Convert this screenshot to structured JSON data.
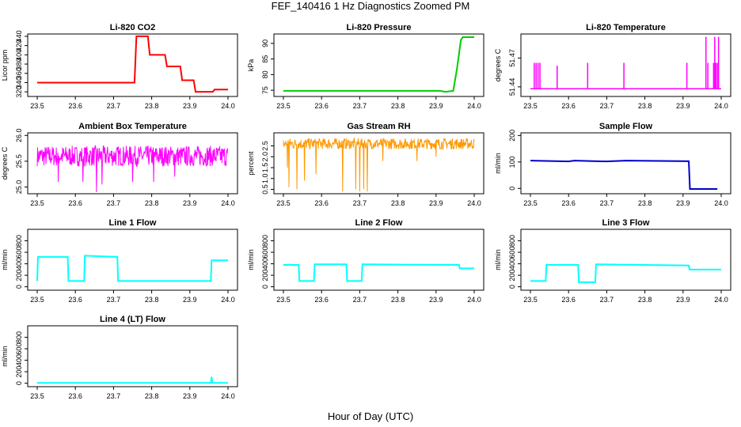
{
  "figure": {
    "title": "FEF_140416  1 Hz Diagnostics Zoomed PM",
    "xlabel": "Hour of Day (UTC)"
  },
  "colors": {
    "axis": "#000000"
  },
  "chart_data": [
    {
      "id": "co2",
      "type": "line",
      "title": "Li-820 CO2",
      "ylabel": "Licor ppm",
      "color": "#ff0000",
      "xlim": [
        23.5,
        24.0
      ],
      "ylim": [
        310,
        445
      ],
      "xticks": [
        23.5,
        23.6,
        23.7,
        23.8,
        23.9,
        24.0
      ],
      "yticks": [
        320,
        340,
        360,
        380,
        400,
        420,
        440
      ],
      "x": [
        23.5,
        23.755,
        23.76,
        23.79,
        23.795,
        23.835,
        23.84,
        23.875,
        23.88,
        23.91,
        23.915,
        23.96,
        23.965,
        24.0
      ],
      "y": [
        340,
        340,
        440,
        440,
        400,
        400,
        375,
        375,
        345,
        345,
        320,
        320,
        325,
        325
      ]
    },
    {
      "id": "pressure",
      "type": "line",
      "title": "Li-820 Pressure",
      "ylabel": "kPa",
      "color": "#00cc00",
      "xlim": [
        23.5,
        24.0
      ],
      "ylim": [
        73,
        93
      ],
      "xticks": [
        23.5,
        23.6,
        23.7,
        23.8,
        23.9,
        24.0
      ],
      "yticks": [
        75,
        80,
        85,
        90
      ],
      "x": [
        23.5,
        23.91,
        23.925,
        23.945,
        23.955,
        23.965,
        23.97,
        24.0
      ],
      "y": [
        74.8,
        74.8,
        74.5,
        74.8,
        82,
        91,
        92,
        92
      ]
    },
    {
      "id": "temp",
      "type": "spikes",
      "title": "Li-820 Temperature",
      "ylabel": "degrees C",
      "color": "#ff00ff",
      "xlim": [
        23.5,
        24.0
      ],
      "ylim": [
        51.43,
        51.495
      ],
      "xticks": [
        23.5,
        23.6,
        23.7,
        23.8,
        23.9,
        24.0
      ],
      "yticks": [
        51.44,
        51.47
      ],
      "base": 51.438,
      "spikes_x": [
        23.51,
        23.515,
        23.52,
        23.525,
        23.57,
        23.65,
        23.745,
        23.91,
        23.96,
        23.965,
        23.98,
        23.983,
        23.986,
        23.99,
        23.993
      ],
      "spikes_y": [
        51.465,
        51.465,
        51.465,
        51.465,
        51.462,
        51.465,
        51.465,
        51.465,
        51.492,
        51.465,
        51.465,
        51.492,
        51.465,
        51.465,
        51.492
      ]
    },
    {
      "id": "ambient",
      "type": "noise",
      "title": "Ambient Box Temperature",
      "ylabel": "degrees C",
      "color": "#ff00ff",
      "xlim": [
        23.5,
        24.0
      ],
      "ylim": [
        24.87,
        26.05
      ],
      "xticks": [
        23.5,
        23.6,
        23.7,
        23.8,
        23.9,
        24.0
      ],
      "yticks": [
        25.0,
        25.5,
        26.0
      ],
      "mean": 25.6,
      "amp": 0.2,
      "dips": [
        [
          23.555,
          25.1
        ],
        [
          23.62,
          25.1
        ],
        [
          23.655,
          24.9
        ],
        [
          23.67,
          25.05
        ],
        [
          23.75,
          25.1
        ],
        [
          23.805,
          25.1
        ],
        [
          23.86,
          25.2
        ]
      ]
    },
    {
      "id": "rh",
      "type": "noise",
      "title": "Gas Stream RH",
      "ylabel": "percent",
      "color": "#ff9900",
      "xlim": [
        23.5,
        24.0
      ],
      "ylim": [
        0.3,
        3.1
      ],
      "xticks": [
        23.5,
        23.6,
        23.7,
        23.8,
        23.9,
        24.0
      ],
      "yticks": [
        0.5,
        1.0,
        1.5,
        2.0,
        2.5
      ],
      "mean": 2.6,
      "amp": 0.25,
      "dips": [
        [
          23.51,
          1.5
        ],
        [
          23.515,
          0.6
        ],
        [
          23.535,
          0.5
        ],
        [
          23.555,
          0.9
        ],
        [
          23.585,
          1.2
        ],
        [
          23.655,
          0.4
        ],
        [
          23.69,
          0.5
        ],
        [
          23.7,
          0.4
        ],
        [
          23.71,
          0.5
        ],
        [
          23.72,
          0.4
        ],
        [
          23.76,
          1.8
        ],
        [
          23.85,
          1.8
        ],
        [
          23.9,
          2.0
        ]
      ]
    },
    {
      "id": "sample",
      "type": "line",
      "title": "Sample Flow",
      "ylabel": "ml/min",
      "color": "#0000cc",
      "xlim": [
        23.5,
        24.0
      ],
      "ylim": [
        -20,
        210
      ],
      "xticks": [
        23.5,
        23.6,
        23.7,
        23.8,
        23.9,
        24.0
      ],
      "yticks": [
        0,
        100,
        200
      ],
      "x": [
        23.5,
        23.6,
        23.615,
        23.7,
        23.75,
        23.915,
        23.918,
        23.99
      ],
      "y": [
        105,
        102,
        105,
        102,
        105,
        103,
        -2,
        -2
      ]
    },
    {
      "id": "line1",
      "type": "line",
      "title": "Line 1 Flow",
      "ylabel": "ml/min",
      "color": "#00ffff",
      "xlim": [
        23.5,
        24.0
      ],
      "ylim": [
        -60,
        1000
      ],
      "xticks": [
        23.5,
        23.6,
        23.7,
        23.8,
        23.9,
        24.0
      ],
      "yticks": [
        0,
        200,
        400,
        600,
        800
      ],
      "x": [
        23.5,
        23.502,
        23.58,
        23.582,
        23.623,
        23.625,
        23.71,
        23.712,
        23.955,
        23.957,
        24.0
      ],
      "y": [
        100,
        520,
        520,
        100,
        100,
        540,
        520,
        100,
        100,
        460,
        460
      ]
    },
    {
      "id": "line2",
      "type": "line",
      "title": "Line 2 Flow",
      "ylabel": "ml/min",
      "color": "#00ffff",
      "xlim": [
        23.5,
        24.0
      ],
      "ylim": [
        -60,
        1000
      ],
      "xticks": [
        23.5,
        23.6,
        23.7,
        23.8,
        23.9,
        24.0
      ],
      "yticks": [
        0,
        200,
        400,
        600,
        800
      ],
      "x": [
        23.5,
        23.54,
        23.542,
        23.58,
        23.582,
        23.665,
        23.667,
        23.705,
        23.707,
        23.96,
        23.962,
        24.0
      ],
      "y": [
        380,
        380,
        100,
        100,
        390,
        390,
        100,
        100,
        390,
        380,
        320,
        320
      ]
    },
    {
      "id": "line3",
      "type": "line",
      "title": "Line 3 Flow",
      "ylabel": "ml/min",
      "color": "#00ffff",
      "xlim": [
        23.5,
        24.0
      ],
      "ylim": [
        -60,
        1000
      ],
      "xticks": [
        23.5,
        23.6,
        23.7,
        23.8,
        23.9,
        24.0
      ],
      "yticks": [
        0,
        200,
        400,
        600,
        800
      ],
      "x": [
        23.5,
        23.502,
        23.54,
        23.542,
        23.625,
        23.627,
        23.67,
        23.672,
        23.915,
        23.917,
        24.0
      ],
      "y": [
        100,
        100,
        100,
        380,
        380,
        80,
        80,
        390,
        370,
        300,
        300
      ]
    },
    {
      "id": "line4",
      "type": "line",
      "title": "Line 4 (LT) Flow",
      "ylabel": "ml/min",
      "color": "#00ffff",
      "xlim": [
        23.5,
        24.0
      ],
      "ylim": [
        -60,
        1000
      ],
      "xticks": [
        23.5,
        23.6,
        23.7,
        23.8,
        23.9,
        24.0
      ],
      "yticks": [
        0,
        200,
        400,
        600,
        800
      ],
      "x": [
        23.5,
        23.955,
        23.957,
        23.959,
        24.0
      ],
      "y": [
        5,
        5,
        110,
        5,
        5
      ]
    }
  ]
}
